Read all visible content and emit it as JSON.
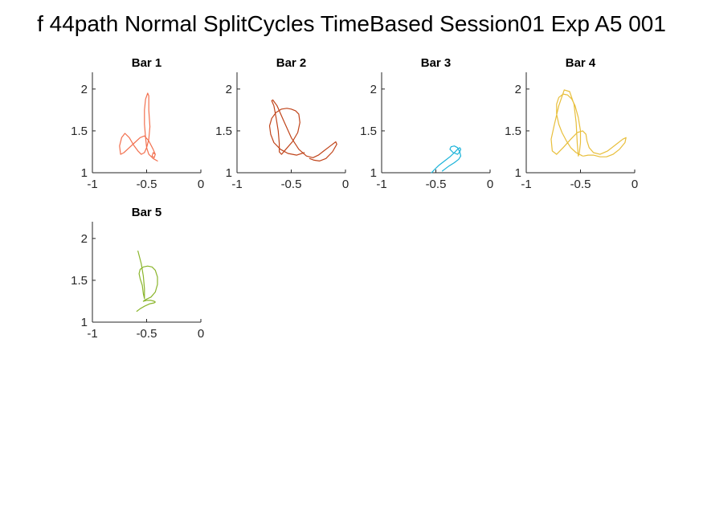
{
  "figure": {
    "title": "f 44path Normal SplitCycles TimeBased Session01 Exp A5 001"
  },
  "chart_data": [
    {
      "type": "line",
      "title": "Bar 1",
      "xlim": [
        -1,
        0
      ],
      "ylim": [
        1,
        2.2
      ],
      "xticks": [
        -1,
        -0.5,
        0
      ],
      "xtick_labels": [
        "-1",
        "-0.5",
        "0"
      ],
      "yticks": [
        1,
        1.5,
        2
      ],
      "ytick_labels": [
        "1",
        "1.5",
        "2"
      ],
      "grid": false,
      "color": "#F2704F",
      "series": [
        {
          "x": [
            -0.4,
            -0.44,
            -0.48,
            -0.5,
            -0.51,
            -0.52,
            -0.52,
            -0.51,
            -0.49,
            -0.48,
            -0.48,
            -0.47,
            -0.48,
            -0.5,
            -0.52,
            -0.55,
            -0.58,
            -0.62,
            -0.66,
            -0.7,
            -0.73,
            -0.75,
            -0.74,
            -0.71,
            -0.66,
            -0.61,
            -0.56,
            -0.52,
            -0.48,
            -0.44,
            -0.42,
            -0.43,
            -0.45,
            -0.44,
            -0.42
          ],
          "y": [
            1.14,
            1.17,
            1.22,
            1.3,
            1.42,
            1.58,
            1.75,
            1.88,
            1.95,
            1.92,
            1.75,
            1.55,
            1.4,
            1.3,
            1.24,
            1.22,
            1.26,
            1.33,
            1.42,
            1.47,
            1.42,
            1.32,
            1.22,
            1.24,
            1.3,
            1.36,
            1.42,
            1.44,
            1.38,
            1.28,
            1.22,
            1.18,
            1.2,
            1.24,
            1.22
          ]
        }
      ]
    },
    {
      "type": "line",
      "title": "Bar 2",
      "xlim": [
        -1,
        0
      ],
      "ylim": [
        1,
        2.2
      ],
      "xticks": [
        -1,
        -0.5,
        0
      ],
      "xtick_labels": [
        "-1",
        "-0.5",
        "0"
      ],
      "yticks": [
        1,
        1.5,
        2
      ],
      "ytick_labels": [
        "1",
        "1.5",
        "2"
      ],
      "grid": false,
      "color": "#C0441A",
      "series": [
        {
          "x": [
            -0.38,
            -0.45,
            -0.53,
            -0.6,
            -0.66,
            -0.69,
            -0.7,
            -0.68,
            -0.64,
            -0.59,
            -0.54,
            -0.5,
            -0.46,
            -0.43,
            -0.42,
            -0.44,
            -0.49,
            -0.55,
            -0.59,
            -0.61,
            -0.61,
            -0.62,
            -0.64,
            -0.66,
            -0.68,
            -0.67,
            -0.63,
            -0.57,
            -0.5,
            -0.43,
            -0.36,
            -0.3,
            -0.25,
            -0.2,
            -0.14,
            -0.09,
            -0.08,
            -0.12,
            -0.18,
            -0.24,
            -0.29,
            -0.33
          ],
          "y": [
            1.24,
            1.21,
            1.23,
            1.28,
            1.36,
            1.46,
            1.56,
            1.65,
            1.72,
            1.76,
            1.77,
            1.76,
            1.74,
            1.7,
            1.6,
            1.48,
            1.37,
            1.28,
            1.22,
            1.25,
            1.35,
            1.5,
            1.66,
            1.8,
            1.86,
            1.87,
            1.8,
            1.62,
            1.42,
            1.28,
            1.2,
            1.18,
            1.21,
            1.26,
            1.32,
            1.37,
            1.34,
            1.25,
            1.17,
            1.14,
            1.15,
            1.17
          ]
        }
      ]
    },
    {
      "type": "line",
      "title": "Bar 3",
      "xlim": [
        -1,
        0
      ],
      "ylim": [
        1,
        2.2
      ],
      "xticks": [
        -1,
        -0.5,
        0
      ],
      "xtick_labels": [
        "-1",
        "-0.5",
        "0"
      ],
      "yticks": [
        1,
        1.5,
        2
      ],
      "ytick_labels": [
        "1",
        "1.5",
        "2"
      ],
      "grid": false,
      "color": "#1AB3D9",
      "series": [
        {
          "x": [
            -0.54,
            -0.51,
            -0.47,
            -0.42,
            -0.37,
            -0.33,
            -0.3,
            -0.28,
            -0.27,
            -0.28,
            -0.3,
            -0.34,
            -0.37,
            -0.36,
            -0.33,
            -0.3,
            -0.28,
            -0.27,
            -0.29,
            -0.33,
            -0.38,
            -0.42,
            -0.44
          ],
          "y": [
            1.0,
            1.04,
            1.09,
            1.14,
            1.19,
            1.24,
            1.28,
            1.3,
            1.28,
            1.25,
            1.22,
            1.24,
            1.28,
            1.31,
            1.32,
            1.3,
            1.25,
            1.2,
            1.16,
            1.12,
            1.08,
            1.04,
            1.02
          ]
        }
      ]
    },
    {
      "type": "line",
      "title": "Bar 4",
      "xlim": [
        -1,
        0
      ],
      "ylim": [
        1,
        2.2
      ],
      "xticks": [
        -1,
        -0.5,
        0
      ],
      "xtick_labels": [
        "-1",
        "-0.5",
        "0"
      ],
      "yticks": [
        1,
        1.5,
        2
      ],
      "ytick_labels": [
        "1",
        "1.5",
        "2"
      ],
      "grid": false,
      "color": "#E8BF3C",
      "series": [
        {
          "x": [
            -0.48,
            -0.54,
            -0.59,
            -0.63,
            -0.67,
            -0.7,
            -0.72,
            -0.72,
            -0.7,
            -0.66,
            -0.62,
            -0.58,
            -0.55,
            -0.52,
            -0.5,
            -0.5,
            -0.51,
            -0.52,
            -0.53,
            -0.54,
            -0.56,
            -0.6,
            -0.65,
            -0.7,
            -0.74,
            -0.77,
            -0.76,
            -0.72,
            -0.66,
            -0.59,
            -0.53,
            -0.48,
            -0.45,
            -0.44,
            -0.42,
            -0.38,
            -0.32,
            -0.25,
            -0.17,
            -0.11,
            -0.08,
            -0.09,
            -0.14,
            -0.2,
            -0.26,
            -0.32,
            -0.38,
            -0.43,
            -0.47
          ],
          "y": [
            1.2,
            1.24,
            1.3,
            1.38,
            1.48,
            1.58,
            1.7,
            1.82,
            1.9,
            1.94,
            1.93,
            1.88,
            1.8,
            1.66,
            1.5,
            1.36,
            1.24,
            1.2,
            1.35,
            1.6,
            1.82,
            1.97,
            1.99,
            1.8,
            1.58,
            1.4,
            1.26,
            1.22,
            1.3,
            1.4,
            1.48,
            1.5,
            1.46,
            1.38,
            1.3,
            1.24,
            1.22,
            1.26,
            1.34,
            1.4,
            1.42,
            1.36,
            1.28,
            1.22,
            1.19,
            1.19,
            1.21,
            1.21,
            1.2
          ]
        }
      ]
    },
    {
      "type": "line",
      "title": "Bar 5",
      "xlim": [
        -1,
        0
      ],
      "ylim": [
        1,
        2.2
      ],
      "xticks": [
        -1,
        -0.5,
        0
      ],
      "xtick_labels": [
        "-1",
        "-0.5",
        "0"
      ],
      "yticks": [
        1,
        1.5,
        2
      ],
      "ytick_labels": [
        "1",
        "1.5",
        "2"
      ],
      "grid": false,
      "color": "#8AB52B",
      "series": [
        {
          "x": [
            -0.58,
            -0.55,
            -0.53,
            -0.52,
            -0.52,
            -0.53,
            -0.54,
            -0.56,
            -0.57,
            -0.56,
            -0.53,
            -0.49,
            -0.45,
            -0.42,
            -0.4,
            -0.4,
            -0.42,
            -0.46,
            -0.51,
            -0.53,
            -0.5,
            -0.46,
            -0.43,
            -0.42,
            -0.43,
            -0.47,
            -0.52,
            -0.56,
            -0.59
          ],
          "y": [
            1.85,
            1.7,
            1.55,
            1.4,
            1.28,
            1.34,
            1.44,
            1.52,
            1.58,
            1.63,
            1.66,
            1.67,
            1.66,
            1.62,
            1.54,
            1.45,
            1.36,
            1.3,
            1.27,
            1.25,
            1.26,
            1.26,
            1.25,
            1.24,
            1.23,
            1.22,
            1.19,
            1.16,
            1.13
          ]
        }
      ]
    }
  ]
}
